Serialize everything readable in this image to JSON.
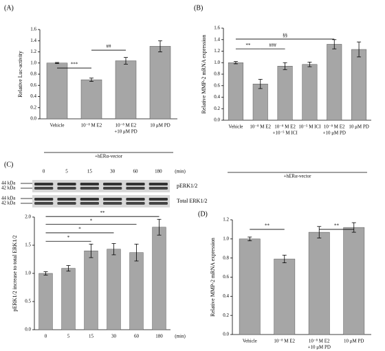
{
  "chart_data": [
    {
      "type": "bar",
      "panel": "(A)",
      "y_label": "Relative Luc-activity",
      "categories": [
        "Vehicle",
        "10⁻⁸ M E2",
        [
          "10⁻⁸ M E2",
          "+10 μM PD"
        ],
        "10 μM PD"
      ],
      "series": [
        {
          "color": "#a6a6a6",
          "values": [
            1.0,
            0.7,
            1.04,
            1.3
          ],
          "errors": [
            0.01,
            0.03,
            0.06,
            0.1
          ]
        }
      ],
      "ylim": [
        0,
        1.6
      ],
      "yticks": [
        {
          "value": 0,
          "label": "0.0"
        },
        0.2,
        0.4,
        0.6,
        0.8,
        {
          "value": 1,
          "label": "1.0"
        },
        1.2,
        1.4,
        1.6
      ],
      "group": "+hERα-vector",
      "annotations": [
        "***",
        "##"
      ]
    },
    {
      "type": "bar",
      "panel": "(B)",
      "y_label": "Relative MMP-2 mRNA expression",
      "categories": [
        "Vehicle",
        "10⁻⁸ M E2",
        [
          "10⁻⁸ M E2",
          "+10⁻⁵ M ICI"
        ],
        "10⁻⁵ M ICI",
        [
          "10⁻⁸ M E2",
          "+10 μM PD"
        ],
        "10 μM PD"
      ],
      "series": [
        {
          "color": "#a6a6a6",
          "values": [
            1.0,
            0.63,
            0.94,
            0.97,
            1.32,
            1.23
          ],
          "errors": [
            0.02,
            0.08,
            0.06,
            0.04,
            0.08,
            0.13
          ]
        }
      ],
      "ylim": [
        0,
        1.6
      ],
      "yticks": [
        {
          "value": 0,
          "label": "0.0"
        },
        0.2,
        0.4,
        0.6,
        0.8,
        {
          "value": 1,
          "label": "1.0"
        },
        1.2,
        1.4,
        1.6
      ],
      "group": "+hERα-vector",
      "annotations": [
        "**",
        "###",
        "§§"
      ]
    },
    {
      "type": "bar",
      "panel": "(C)",
      "y_label": "pERK1/2 increase to total ERK1/2",
      "blot": {
        "lanes": [
          "0",
          "5",
          "15",
          "30",
          "60",
          "180"
        ],
        "unit": "(min)",
        "rows": [
          {
            "name": "pERK1/2",
            "markers": [
              "44 kDa",
              "42 kDa"
            ]
          },
          {
            "name": "Total ERK1/2",
            "markers": [
              "44 kDa",
              "42 kDa"
            ]
          }
        ]
      },
      "categories": [
        "0",
        "5",
        "15",
        "30",
        "60",
        "180"
      ],
      "x_label": "(min)",
      "series": [
        {
          "color": "#a6a6a6",
          "values": [
            1.0,
            1.09,
            1.4,
            1.43,
            1.37,
            1.82
          ],
          "errors": [
            0.03,
            0.05,
            0.12,
            0.1,
            0.15,
            0.14
          ]
        }
      ],
      "ylim": [
        0,
        2
      ],
      "yticks": [
        {
          "value": 0,
          "label": "0.0"
        },
        0.5,
        {
          "value": 1,
          "label": "1.0"
        },
        1.5,
        {
          "value": 2,
          "label": "2.0"
        }
      ],
      "annotations": [
        "*",
        "*",
        "*",
        "**"
      ]
    },
    {
      "type": "bar",
      "panel": "(D)",
      "y_label": "Relative MMP-2 mRNA expression",
      "categories": [
        "Vehicle",
        "10⁻⁸ M E2",
        [
          "10⁻⁸ M E2",
          "+10 μM PD"
        ],
        "10 μM PD"
      ],
      "series": [
        {
          "color": "#a6a6a6",
          "values": [
            1.0,
            0.79,
            1.07,
            1.12
          ],
          "errors": [
            0.02,
            0.04,
            0.06,
            0.05
          ]
        }
      ],
      "ylim": [
        0,
        1.2
      ],
      "yticks": [
        {
          "value": 0,
          "label": "0.0"
        },
        0.2,
        0.4,
        0.6,
        0.8,
        {
          "value": 1,
          "label": "1.0"
        },
        1.2
      ],
      "annotations": [
        "**",
        "**"
      ]
    }
  ]
}
